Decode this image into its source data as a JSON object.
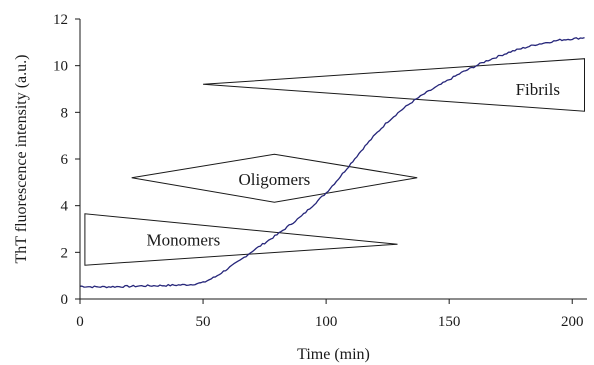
{
  "chart_data": {
    "type": "line",
    "title": "",
    "xlabel": "Time (min)",
    "ylabel": "ThT fluorescence intensity (a.u.)",
    "xlim": [
      0,
      206
    ],
    "ylim": [
      0,
      12
    ],
    "xticks": [
      0,
      50,
      100,
      150,
      200
    ],
    "yticks": [
      0,
      2,
      4,
      6,
      8,
      10,
      12
    ],
    "grid": false,
    "line_color": "#26267a",
    "series": [
      {
        "x": [
          0,
          5,
          10,
          15,
          20,
          25,
          30,
          35,
          40,
          45,
          50,
          55,
          60,
          65,
          70,
          75,
          80,
          85,
          90,
          95,
          100,
          105,
          110,
          115,
          120,
          125,
          130,
          135,
          140,
          145,
          150,
          155,
          160,
          165,
          170,
          175,
          180,
          185,
          190,
          195,
          200,
          205
        ],
        "y": [
          0.55,
          0.52,
          0.52,
          0.53,
          0.54,
          0.56,
          0.57,
          0.58,
          0.6,
          0.62,
          0.7,
          0.95,
          1.3,
          1.65,
          2.05,
          2.4,
          2.75,
          3.15,
          3.55,
          4.05,
          4.55,
          5.15,
          5.8,
          6.45,
          7.05,
          7.6,
          8.05,
          8.45,
          8.8,
          9.1,
          9.4,
          9.7,
          9.95,
          10.2,
          10.4,
          10.6,
          10.75,
          10.9,
          11.0,
          11.1,
          11.15,
          11.2
        ]
      }
    ],
    "annotations": [
      {
        "label": "Monomers",
        "shape": "wedge",
        "points": [
          [
            2,
            3.65
          ],
          [
            2,
            1.45
          ],
          [
            129,
            2.35
          ]
        ],
        "label_pos": [
          42,
          2.55
        ]
      },
      {
        "label": "Oligomers",
        "shape": "diamond",
        "points": [
          [
            21,
            5.2
          ],
          [
            79,
            6.2
          ],
          [
            137,
            5.2
          ],
          [
            79,
            4.15
          ]
        ],
        "label_pos": [
          79,
          5.15
        ]
      },
      {
        "label": "Fibrils",
        "shape": "wedge",
        "points": [
          [
            50,
            9.2
          ],
          [
            205,
            10.3
          ],
          [
            205,
            8.05
          ]
        ],
        "label_pos": [
          186,
          9.0
        ]
      }
    ]
  }
}
